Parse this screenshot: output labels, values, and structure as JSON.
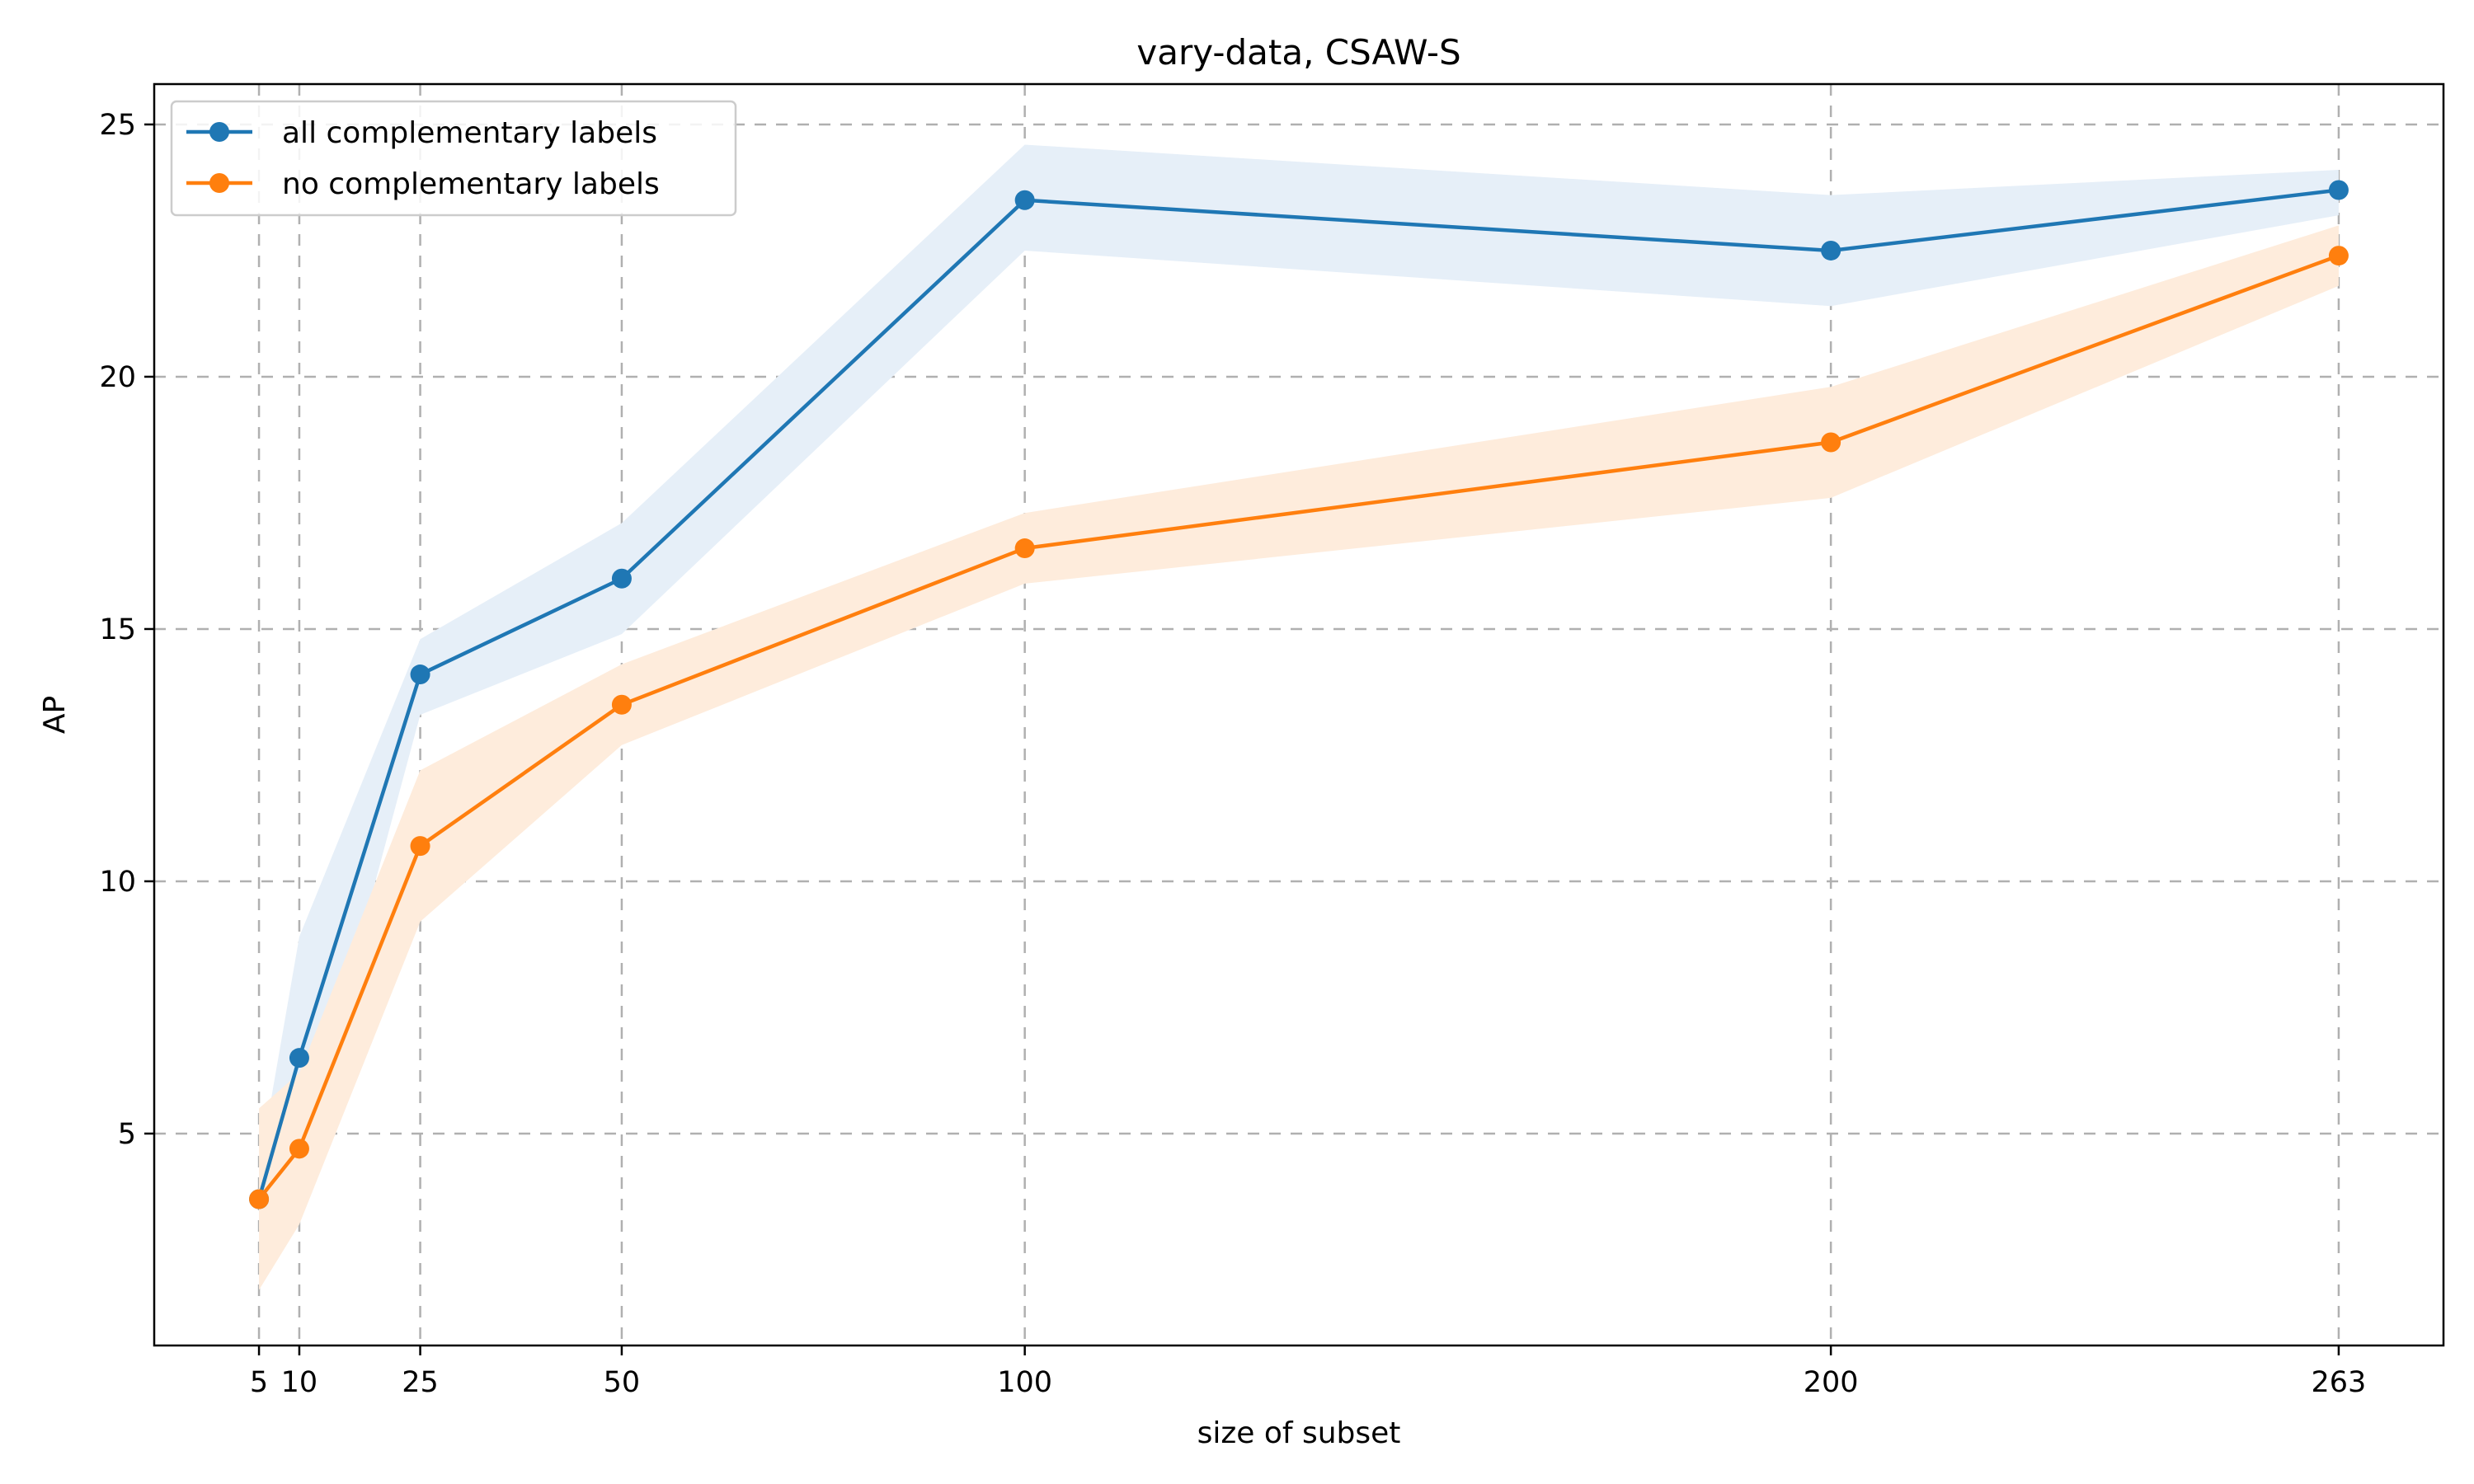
{
  "chart_data": {
    "type": "line",
    "title": "vary-data, CSAW-S",
    "xlabel": "size of subset",
    "ylabel": "AP",
    "x": [
      5,
      10,
      25,
      50,
      100,
      200,
      263
    ],
    "xticks": [
      5,
      10,
      25,
      50,
      100,
      200,
      263
    ],
    "yticks": [
      5,
      10,
      15,
      20,
      25
    ],
    "xlim": [
      -8,
      276
    ],
    "ylim": [
      0.8,
      25.8
    ],
    "grid": true,
    "legend_position": "top-left",
    "series": [
      {
        "name": "all complementary labels",
        "color": "#1f77b4",
        "band_color": "#e6eff8",
        "values": [
          3.7,
          6.5,
          14.1,
          16.0,
          23.5,
          22.5,
          23.7
        ],
        "lower": [
          3.1,
          4.4,
          13.3,
          14.9,
          22.5,
          21.4,
          23.2
        ],
        "upper": [
          4.3,
          8.9,
          14.8,
          17.1,
          24.6,
          23.6,
          24.1
        ]
      },
      {
        "name": "no complementary labels",
        "color": "#ff7f0e",
        "band_color": "#feecdc",
        "values": [
          3.7,
          4.7,
          10.7,
          13.5,
          16.6,
          18.7,
          22.4
        ],
        "lower": [
          1.9,
          3.2,
          9.2,
          12.7,
          15.9,
          17.6,
          21.8
        ],
        "upper": [
          5.5,
          6.2,
          12.2,
          14.3,
          17.3,
          19.8,
          23.0
        ]
      }
    ]
  }
}
